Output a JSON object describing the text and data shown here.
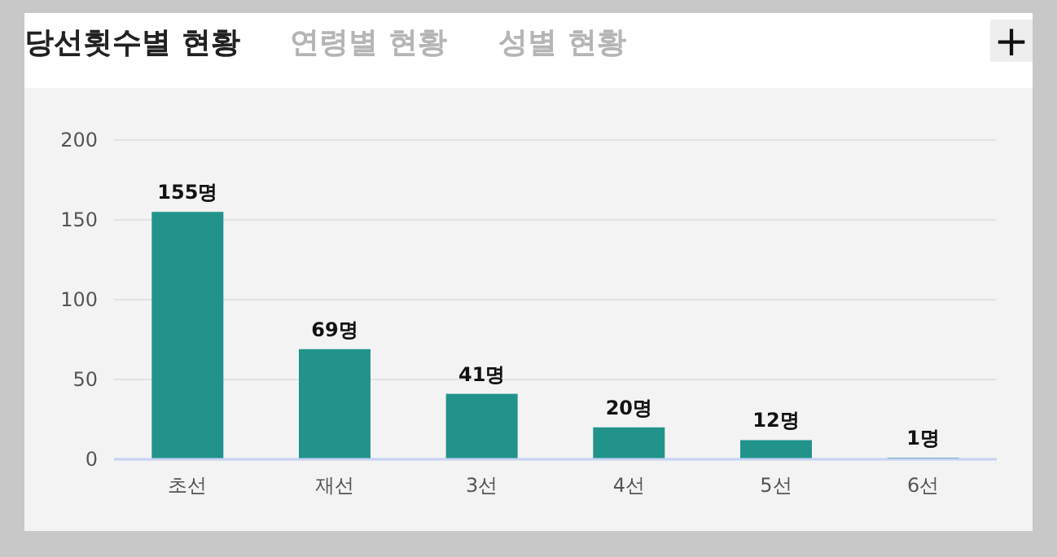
{
  "chart_data": {
    "type": "bar",
    "title": "당선횟수별 현황",
    "annotations": [
      "연령별 현황",
      "성별 현황",
      "+"
    ],
    "categories": [
      "초선",
      "재선",
      "3선",
      "4선",
      "5선",
      "6선"
    ],
    "values": [
      155,
      69,
      41,
      20,
      12,
      1
    ],
    "value_labels": [
      "155명",
      "69명",
      "41명",
      "20명",
      "12명",
      "1명"
    ],
    "color": "#21938b",
    "ylim": [
      0,
      200
    ],
    "yticks": [
      0,
      50,
      100,
      150,
      200
    ],
    "grid": "y"
  }
}
